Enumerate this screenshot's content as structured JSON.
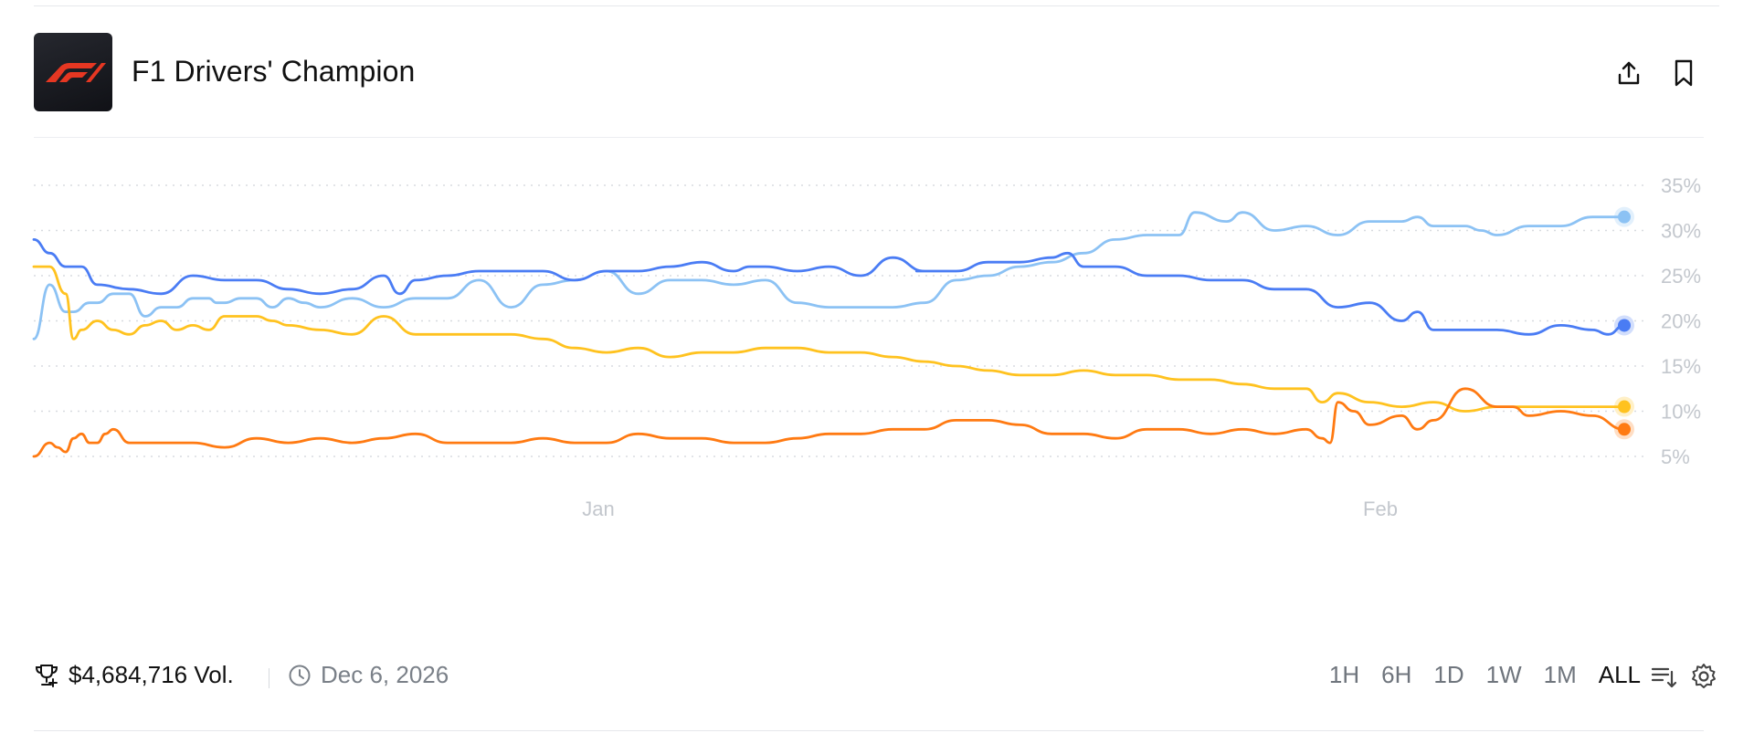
{
  "market": {
    "title": "F1 Drivers' Champion",
    "logo_icon": "f1-logo"
  },
  "header": {
    "share_icon": "share-upload-icon",
    "bookmark_icon": "bookmark-icon"
  },
  "footer": {
    "volume": "$4,684,716 Vol.",
    "date": "Dec 6, 2026",
    "ranges": [
      "1H",
      "6H",
      "1D",
      "1W",
      "1M",
      "ALL"
    ],
    "active_range": "ALL"
  },
  "chart_data": {
    "type": "line",
    "y_ticks": [
      "5%",
      "10%",
      "15%",
      "20%",
      "25%",
      "30%",
      "35%"
    ],
    "x_ticks": [
      "Jan",
      "Feb"
    ],
    "ylim": [
      5,
      35
    ],
    "grid": true,
    "series": [
      {
        "color": "#8cc2f4",
        "t": [
          0,
          0.01,
          0.02,
          0.025,
          0.035,
          0.04,
          0.05,
          0.06,
          0.07,
          0.08,
          0.09,
          0.1,
          0.11,
          0.115,
          0.12,
          0.13,
          0.14,
          0.15,
          0.16,
          0.17,
          0.18,
          0.2,
          0.22,
          0.24,
          0.26,
          0.28,
          0.3,
          0.32,
          0.34,
          0.36,
          0.38,
          0.4,
          0.42,
          0.44,
          0.46,
          0.48,
          0.5,
          0.52,
          0.54,
          0.56,
          0.58,
          0.6,
          0.62,
          0.64,
          0.66,
          0.68,
          0.7,
          0.72,
          0.73,
          0.75,
          0.76,
          0.78,
          0.8,
          0.82,
          0.84,
          0.86,
          0.87,
          0.88,
          0.885,
          0.9,
          0.91,
          0.92,
          0.94,
          0.96,
          0.98,
          1.0
        ],
        "values": [
          18,
          24,
          21,
          21,
          22,
          22,
          23,
          23,
          20.5,
          21.5,
          21.5,
          22.5,
          22.5,
          22,
          22,
          22.5,
          22.5,
          21.5,
          22.5,
          22,
          21.5,
          22.5,
          21.5,
          22.5,
          22.5,
          24.5,
          21.5,
          24,
          24.5,
          25.5,
          23,
          24.5,
          24.5,
          24,
          24.5,
          22,
          21.5,
          21.5,
          21.5,
          22,
          24.5,
          25,
          26,
          26.5,
          27.5,
          29,
          29.5,
          29.5,
          32,
          31,
          32,
          30,
          30.5,
          29.5,
          31,
          31,
          31.5,
          30.5,
          30.5,
          30.5,
          30,
          29.5,
          30.5,
          30.5,
          31.5,
          31.5
        ]
      },
      {
        "color": "#4a7cf4",
        "t": [
          0,
          0.01,
          0.02,
          0.03,
          0.04,
          0.06,
          0.08,
          0.1,
          0.12,
          0.14,
          0.16,
          0.18,
          0.2,
          0.22,
          0.23,
          0.24,
          0.26,
          0.28,
          0.3,
          0.32,
          0.34,
          0.36,
          0.38,
          0.4,
          0.42,
          0.44,
          0.45,
          0.46,
          0.48,
          0.5,
          0.52,
          0.54,
          0.56,
          0.555,
          0.58,
          0.6,
          0.62,
          0.64,
          0.65,
          0.66,
          0.68,
          0.7,
          0.72,
          0.74,
          0.76,
          0.78,
          0.8,
          0.82,
          0.84,
          0.86,
          0.87,
          0.88,
          0.9,
          0.92,
          0.94,
          0.96,
          0.98,
          0.99,
          1.0
        ],
        "values": [
          29,
          27.5,
          26,
          26,
          24,
          23.5,
          23,
          25,
          24.5,
          24.5,
          23.5,
          23,
          23.5,
          25,
          23,
          24.5,
          25,
          25.5,
          25.5,
          25.5,
          24.5,
          25.5,
          25.5,
          26,
          26.5,
          25.5,
          26,
          26,
          25.5,
          26,
          25,
          27,
          25.5,
          25.5,
          25.5,
          26.5,
          26.5,
          27,
          27.5,
          26,
          26,
          25,
          25,
          24.5,
          24.5,
          23.5,
          23.5,
          21.5,
          22,
          20,
          21,
          19,
          19,
          19,
          18.5,
          19.5,
          19,
          18.5,
          19.5
        ]
      },
      {
        "color": "#ffc21f",
        "t": [
          0,
          0.01,
          0.02,
          0.025,
          0.03,
          0.04,
          0.05,
          0.06,
          0.07,
          0.08,
          0.09,
          0.1,
          0.11,
          0.12,
          0.13,
          0.14,
          0.15,
          0.16,
          0.18,
          0.2,
          0.22,
          0.24,
          0.26,
          0.28,
          0.3,
          0.32,
          0.34,
          0.36,
          0.38,
          0.4,
          0.42,
          0.44,
          0.46,
          0.48,
          0.5,
          0.52,
          0.54,
          0.56,
          0.58,
          0.6,
          0.62,
          0.64,
          0.66,
          0.68,
          0.7,
          0.72,
          0.74,
          0.76,
          0.78,
          0.8,
          0.81,
          0.82,
          0.84,
          0.86,
          0.88,
          0.9,
          0.92,
          0.94,
          0.96,
          0.98,
          1.0
        ],
        "values": [
          26,
          26,
          23,
          18,
          19,
          20,
          19,
          18.5,
          19.5,
          20,
          19,
          19.5,
          19,
          20.5,
          20.5,
          20.5,
          20,
          19.5,
          19,
          18.5,
          20.5,
          18.5,
          18.5,
          18.5,
          18.5,
          18,
          17,
          16.5,
          17,
          16,
          16.5,
          16.5,
          17,
          17,
          16.5,
          16.5,
          16,
          15.5,
          15,
          14.5,
          14,
          14,
          14.5,
          14,
          14,
          13.5,
          13.5,
          13,
          12.5,
          12.5,
          11,
          12,
          11,
          10.5,
          11,
          10,
          10.5,
          10.5,
          10.5,
          10.5,
          10.5
        ]
      },
      {
        "color": "#ff7a12",
        "t": [
          0,
          0.01,
          0.015,
          0.02,
          0.025,
          0.03,
          0.035,
          0.04,
          0.045,
          0.05,
          0.06,
          0.08,
          0.1,
          0.12,
          0.14,
          0.16,
          0.18,
          0.2,
          0.22,
          0.24,
          0.26,
          0.28,
          0.3,
          0.32,
          0.34,
          0.36,
          0.38,
          0.4,
          0.42,
          0.44,
          0.46,
          0.48,
          0.5,
          0.52,
          0.54,
          0.56,
          0.58,
          0.6,
          0.62,
          0.64,
          0.66,
          0.68,
          0.7,
          0.72,
          0.74,
          0.76,
          0.78,
          0.8,
          0.81,
          0.815,
          0.82,
          0.83,
          0.84,
          0.86,
          0.87,
          0.88,
          0.9,
          0.92,
          0.93,
          0.94,
          0.96,
          0.98,
          1.0
        ],
        "values": [
          5,
          6.5,
          6,
          5.5,
          7,
          7.5,
          6.5,
          6.5,
          7.5,
          8,
          6.5,
          6.5,
          6.5,
          6,
          7,
          6.5,
          7,
          6.5,
          7,
          7.5,
          6.5,
          6.5,
          6.5,
          7,
          6.5,
          6.5,
          7.5,
          7,
          7,
          6.5,
          6.5,
          7,
          7.5,
          7.5,
          8,
          8,
          9,
          9,
          8.5,
          7.5,
          7.5,
          7,
          8,
          8,
          7.5,
          8,
          7.5,
          8,
          7,
          6.5,
          11,
          10,
          8.5,
          9.5,
          8,
          9,
          12.5,
          10.5,
          10.5,
          9.5,
          10,
          9.5,
          8
        ]
      }
    ]
  }
}
